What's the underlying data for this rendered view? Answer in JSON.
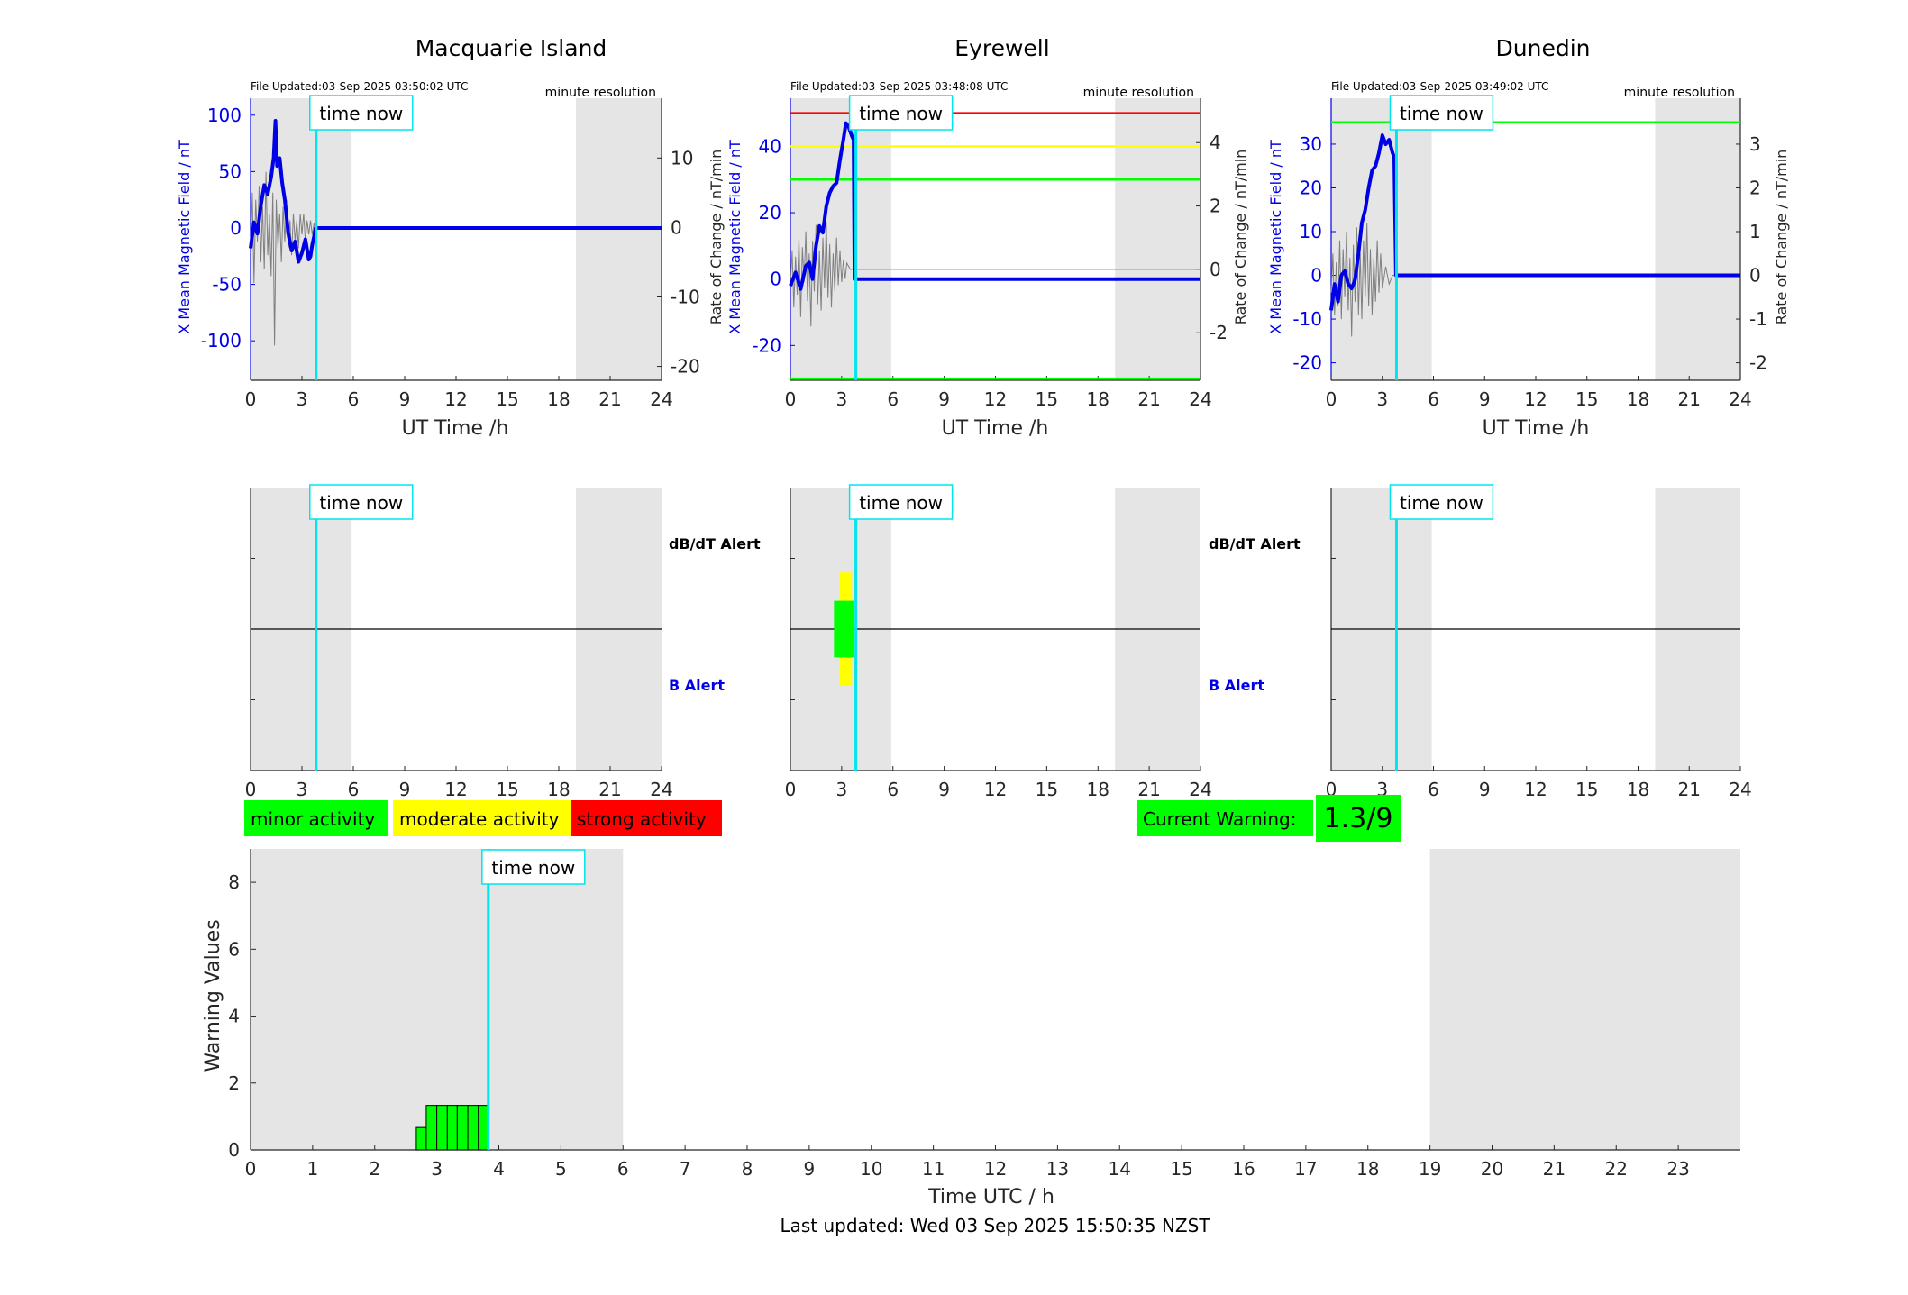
{
  "colors": {
    "background": "#ffffff",
    "night_shade": "#e5e5e5",
    "mean_field": "#0000e6",
    "rate_of_change": "#7f7f7f",
    "time_now": "#00e5ee",
    "minor": "#00ff00",
    "moderate": "#ffff00",
    "strong": "#ff0000",
    "axis": "#262626"
  },
  "chart_data": [
    {
      "type": "line",
      "title": "Macquarie Island",
      "file_updated": "File Updated:03-Sep-2025 03:50:02 UTC",
      "resolution_label": "minute resolution",
      "xlabel": "UT Time /h",
      "ylabel_left": "X Mean Magnetic Field / nT",
      "ylabel_right": "Rate of Change / nT/min",
      "xlim": [
        0,
        24
      ],
      "xticks": [
        "0",
        "3",
        "6",
        "9",
        "12",
        "15",
        "18",
        "21",
        "24"
      ],
      "ylim": [
        -135,
        115
      ],
      "yticks": [
        "-100",
        "-50",
        "0",
        "50",
        "100"
      ],
      "ylim_right": [
        -22,
        18.6
      ],
      "yticks_right": [
        "-20",
        "-10",
        "0",
        "10"
      ],
      "time_now": 3.83,
      "time_now_label": "time now",
      "night_shade": [
        [
          0,
          5.9
        ],
        [
          19,
          24
        ]
      ],
      "threshold_lines": [],
      "series_mean": [
        [
          0,
          -18
        ],
        [
          0.2,
          5
        ],
        [
          0.4,
          -5
        ],
        [
          0.6,
          20
        ],
        [
          0.8,
          38
        ],
        [
          1,
          30
        ],
        [
          1.2,
          45
        ],
        [
          1.35,
          62
        ],
        [
          1.45,
          95
        ],
        [
          1.55,
          55
        ],
        [
          1.7,
          62
        ],
        [
          1.85,
          40
        ],
        [
          2,
          25
        ],
        [
          2.2,
          -5
        ],
        [
          2.4,
          -20
        ],
        [
          2.6,
          -12
        ],
        [
          2.8,
          -30
        ],
        [
          3,
          -22
        ],
        [
          3.2,
          -10
        ],
        [
          3.4,
          -28
        ],
        [
          3.5,
          -25
        ],
        [
          3.6,
          -15
        ],
        [
          3.7,
          -8
        ],
        [
          3.8,
          0
        ],
        [
          24,
          0
        ]
      ],
      "series_rate": [
        [
          0,
          -3
        ],
        [
          0.1,
          5
        ],
        [
          0.2,
          -8
        ],
        [
          0.3,
          4
        ],
        [
          0.4,
          -2
        ],
        [
          0.5,
          6
        ],
        [
          0.6,
          -5
        ],
        [
          0.7,
          3
        ],
        [
          0.8,
          -6
        ],
        [
          0.9,
          8
        ],
        [
          1,
          -4
        ],
        [
          1.1,
          2
        ],
        [
          1.2,
          -7
        ],
        [
          1.3,
          5
        ],
        [
          1.4,
          -17
        ],
        [
          1.5,
          4
        ],
        [
          1.6,
          -3
        ],
        [
          1.7,
          2
        ],
        [
          1.8,
          -5
        ],
        [
          1.9,
          3
        ],
        [
          2,
          -2
        ],
        [
          2.1,
          4
        ],
        [
          2.2,
          -3
        ],
        [
          2.3,
          1
        ],
        [
          2.4,
          -4
        ],
        [
          2.5,
          2
        ],
        [
          2.6,
          -2
        ],
        [
          2.7,
          1
        ],
        [
          2.8,
          -3
        ],
        [
          2.9,
          2
        ],
        [
          3,
          -1
        ],
        [
          3.1,
          2
        ],
        [
          3.2,
          -2
        ],
        [
          3.3,
          1
        ],
        [
          3.4,
          -1
        ],
        [
          3.5,
          1
        ],
        [
          3.6,
          -1
        ],
        [
          3.7,
          0.5
        ],
        [
          3.8,
          0
        ],
        [
          24,
          0
        ]
      ],
      "alerts": {
        "dbdt_label": "dB/dT Alert",
        "b_label": "B Alert",
        "xticks": [
          "0",
          "3",
          "6",
          "9",
          "12",
          "15",
          "18",
          "21",
          "24"
        ],
        "b_blocks": []
      }
    },
    {
      "type": "line",
      "title": "Eyrewell",
      "file_updated": "File Updated:03-Sep-2025 03:48:08 UTC",
      "resolution_label": "minute resolution",
      "xlabel": "UT Time /h",
      "ylabel_left": "X Mean Magnetic Field / nT",
      "ylabel_right": "Rate of Change / nT/min",
      "xlim": [
        0,
        24
      ],
      "xticks": [
        "0",
        "3",
        "6",
        "9",
        "12",
        "15",
        "18",
        "21",
        "24"
      ],
      "ylim": [
        -30.5,
        54.5
      ],
      "yticks": [
        "-20",
        "0",
        "20",
        "40"
      ],
      "ylim_right": [
        -3.5,
        5.4
      ],
      "yticks_right": [
        "-2",
        "0",
        "2",
        "4"
      ],
      "time_now": 3.83,
      "time_now_label": "time now",
      "night_shade": [
        [
          0,
          5.9
        ],
        [
          19,
          24
        ]
      ],
      "threshold_lines": [
        {
          "value": 50,
          "color": "#ff0000"
        },
        {
          "value": 40,
          "color": "#ffff00"
        },
        {
          "value": 30,
          "color": "#00ff00"
        },
        {
          "value": -30,
          "color": "#00ff00"
        }
      ],
      "series_mean": [
        [
          0,
          -2
        ],
        [
          0.3,
          2
        ],
        [
          0.6,
          -3
        ],
        [
          0.9,
          4
        ],
        [
          1.1,
          5
        ],
        [
          1.3,
          0
        ],
        [
          1.5,
          10
        ],
        [
          1.7,
          16
        ],
        [
          1.9,
          14
        ],
        [
          2.1,
          22
        ],
        [
          2.3,
          26
        ],
        [
          2.5,
          28
        ],
        [
          2.7,
          29
        ],
        [
          2.9,
          36
        ],
        [
          3.1,
          42
        ],
        [
          3.25,
          47
        ],
        [
          3.4,
          46
        ],
        [
          3.6,
          43
        ],
        [
          3.7,
          42
        ],
        [
          3.75,
          0
        ],
        [
          24,
          0
        ]
      ],
      "series_rate": [
        [
          0,
          -0.5
        ],
        [
          0.1,
          0.6
        ],
        [
          0.2,
          -1.2
        ],
        [
          0.3,
          0.4
        ],
        [
          0.4,
          -0.8
        ],
        [
          0.5,
          1
        ],
        [
          0.6,
          -1.5
        ],
        [
          0.7,
          0.7
        ],
        [
          0.8,
          -0.4
        ],
        [
          0.9,
          1.2
        ],
        [
          1,
          -1
        ],
        [
          1.1,
          0.5
        ],
        [
          1.2,
          -1.8
        ],
        [
          1.3,
          0.9
        ],
        [
          1.4,
          -0.7
        ],
        [
          1.5,
          1.4
        ],
        [
          1.6,
          -1.1
        ],
        [
          1.7,
          0.6
        ],
        [
          1.8,
          -1.3
        ],
        [
          1.9,
          1
        ],
        [
          2,
          -0.6
        ],
        [
          2.1,
          1.5
        ],
        [
          2.2,
          -0.9
        ],
        [
          2.3,
          0.8
        ],
        [
          2.4,
          -1.2
        ],
        [
          2.5,
          0.5
        ],
        [
          2.6,
          -0.7
        ],
        [
          2.7,
          1
        ],
        [
          2.8,
          -0.5
        ],
        [
          2.9,
          0.6
        ],
        [
          3,
          -0.4
        ],
        [
          3.1,
          0.3
        ],
        [
          3.2,
          -0.3
        ],
        [
          3.3,
          0.2
        ],
        [
          3.5,
          0
        ],
        [
          24,
          0
        ]
      ],
      "alerts": {
        "dbdt_label": "dB/dT Alert",
        "b_label": "B Alert",
        "xticks": [
          "0",
          "3",
          "6",
          "9",
          "12",
          "15",
          "18",
          "21",
          "24"
        ],
        "b_blocks": [
          {
            "x0": 2.9,
            "x1": 3.6,
            "level": "moderate",
            "ymin": 0.3,
            "ymax": 0.7
          },
          {
            "x0": 2.55,
            "x1": 3.7,
            "level": "minor",
            "ymin": 0.4,
            "ymax": 0.6
          }
        ]
      }
    },
    {
      "type": "line",
      "title": "Dunedin",
      "file_updated": "File Updated:03-Sep-2025 03:49:02 UTC",
      "resolution_label": "minute resolution",
      "xlabel": "UT Time /h",
      "ylabel_left": "X Mean Magnetic Field / nT",
      "ylabel_right": "Rate of Change / nT/min",
      "xlim": [
        0,
        24
      ],
      "xticks": [
        "0",
        "3",
        "6",
        "9",
        "12",
        "15",
        "18",
        "21",
        "24"
      ],
      "ylim": [
        -24,
        40.5
      ],
      "yticks": [
        "-20",
        "-10",
        "0",
        "10",
        "20",
        "30"
      ],
      "ylim_right": [
        -2.4,
        4.05
      ],
      "yticks_right": [
        "-2",
        "-1",
        "0",
        "1",
        "2",
        "3"
      ],
      "time_now": 3.83,
      "time_now_label": "time now",
      "night_shade": [
        [
          0,
          5.9
        ],
        [
          19,
          24
        ]
      ],
      "threshold_lines": [
        {
          "value": 35,
          "color": "#00ff00"
        }
      ],
      "series_mean": [
        [
          0,
          -8
        ],
        [
          0.2,
          -2
        ],
        [
          0.4,
          -6
        ],
        [
          0.6,
          0
        ],
        [
          0.8,
          1
        ],
        [
          1,
          -2
        ],
        [
          1.2,
          -3
        ],
        [
          1.4,
          -1
        ],
        [
          1.6,
          5
        ],
        [
          1.8,
          12
        ],
        [
          2,
          15
        ],
        [
          2.2,
          20
        ],
        [
          2.4,
          24
        ],
        [
          2.6,
          25
        ],
        [
          2.8,
          28
        ],
        [
          3,
          32
        ],
        [
          3.2,
          30
        ],
        [
          3.4,
          31
        ],
        [
          3.6,
          28
        ],
        [
          3.7,
          27
        ],
        [
          3.8,
          0
        ],
        [
          24,
          0
        ]
      ],
      "series_rate": [
        [
          0,
          -0.4
        ],
        [
          0.1,
          0.5
        ],
        [
          0.2,
          -0.9
        ],
        [
          0.3,
          0.3
        ],
        [
          0.4,
          -0.7
        ],
        [
          0.5,
          0.8
        ],
        [
          0.6,
          -1
        ],
        [
          0.7,
          0.6
        ],
        [
          0.8,
          -0.5
        ],
        [
          0.9,
          1
        ],
        [
          1,
          -0.8
        ],
        [
          1.1,
          0.4
        ],
        [
          1.2,
          -1.4
        ],
        [
          1.3,
          0.7
        ],
        [
          1.4,
          -0.6
        ],
        [
          1.5,
          1.1
        ],
        [
          1.6,
          -0.9
        ],
        [
          1.7,
          0.5
        ],
        [
          1.8,
          -1
        ],
        [
          1.9,
          0.8
        ],
        [
          2,
          -0.5
        ],
        [
          2.1,
          1.2
        ],
        [
          2.2,
          -0.7
        ],
        [
          2.3,
          0.6
        ],
        [
          2.4,
          -0.9
        ],
        [
          2.5,
          0.4
        ],
        [
          2.6,
          -0.6
        ],
        [
          2.7,
          0.8
        ],
        [
          2.8,
          -0.4
        ],
        [
          2.9,
          0.5
        ],
        [
          3,
          -0.3
        ],
        [
          3.2,
          0.2
        ],
        [
          3.4,
          -0.2
        ],
        [
          3.6,
          0
        ],
        [
          24,
          0
        ]
      ],
      "alerts": {
        "dbdt_label": "dB/dT Alert",
        "b_label": "B Alert",
        "xticks": [
          "0",
          "3",
          "6",
          "9",
          "12",
          "15",
          "18",
          "21",
          "24"
        ],
        "b_blocks": []
      }
    },
    {
      "type": "bar",
      "title": "",
      "xlabel": "Time UTC / h",
      "ylabel": "Warning Values",
      "xlim": [
        0,
        24
      ],
      "xticks": [
        "0",
        "1",
        "2",
        "3",
        "4",
        "5",
        "6",
        "7",
        "8",
        "9",
        "10",
        "11",
        "12",
        "13",
        "14",
        "15",
        "16",
        "17",
        "18",
        "19",
        "20",
        "21",
        "22",
        "23"
      ],
      "ylim": [
        0,
        9
      ],
      "yticks": [
        "0",
        "2",
        "4",
        "6",
        "8"
      ],
      "time_now": 3.83,
      "time_now_label": "time now",
      "night_shade": [
        [
          0,
          6
        ],
        [
          19,
          24
        ]
      ],
      "bars": [
        {
          "x0": 2.67,
          "x1": 2.83,
          "value": 0.67
        },
        {
          "x0": 2.83,
          "x1": 3.0,
          "value": 1.33
        },
        {
          "x0": 3.0,
          "x1": 3.17,
          "value": 1.33
        },
        {
          "x0": 3.17,
          "x1": 3.33,
          "value": 1.33
        },
        {
          "x0": 3.33,
          "x1": 3.5,
          "value": 1.33
        },
        {
          "x0": 3.5,
          "x1": 3.67,
          "value": 1.33
        },
        {
          "x0": 3.67,
          "x1": 3.83,
          "value": 1.33
        }
      ]
    }
  ],
  "legend": {
    "minor": "minor activity",
    "moderate": "moderate activity",
    "strong": "strong activity"
  },
  "current_warning": {
    "label": "Current Warning:",
    "value": "1.3/9"
  },
  "footer": {
    "last_updated": "Last updated: Wed 03 Sep 2025 15:50:35 NZST"
  }
}
